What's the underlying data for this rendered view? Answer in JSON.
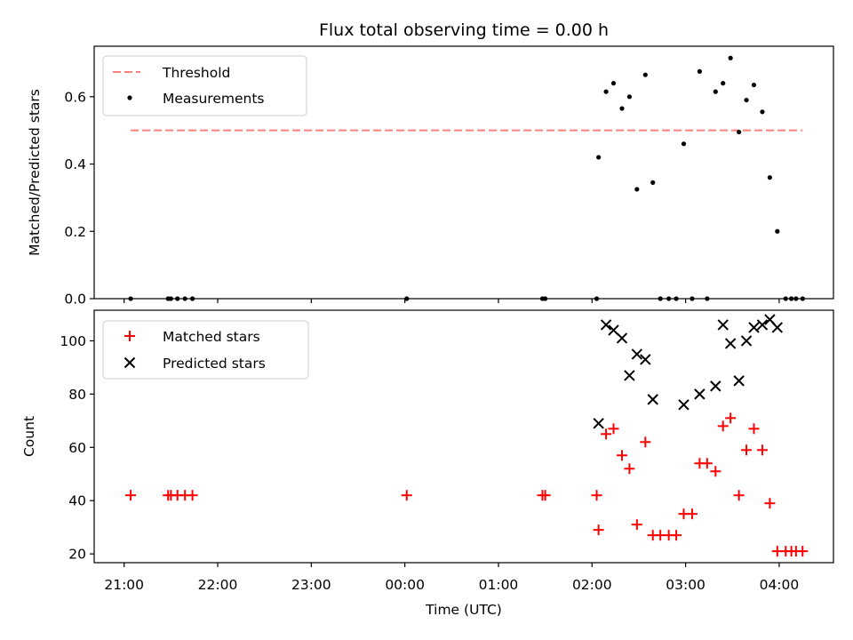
{
  "chart_data": [
    {
      "type": "scatter",
      "title": "Flux total observing time = 0.00 h",
      "xlabel": "",
      "ylabel": "Matched/Predicted stars",
      "ylim": [
        0,
        0.75
      ],
      "yticks": [
        0.0,
        0.2,
        0.4,
        0.6
      ],
      "ytick_labels": [
        "0.0",
        "0.2",
        "0.4",
        "0.6"
      ],
      "xlim": [
        20.68,
        28.58
      ],
      "xticks": [
        21,
        22,
        23,
        24,
        25,
        26,
        27,
        28
      ],
      "legend": {
        "position": "upper-left",
        "entries": [
          "Threshold",
          "Measurements"
        ]
      },
      "threshold": {
        "name": "Threshold",
        "value": 0.5,
        "x_range": [
          21.07,
          28.25
        ],
        "color": "#ff7f7f"
      },
      "series": [
        {
          "name": "Measurements",
          "color": "#000000",
          "points": [
            [
              21.07,
              0.0
            ],
            [
              21.47,
              0.0
            ],
            [
              21.5,
              0.0
            ],
            [
              21.57,
              0.0
            ],
            [
              21.65,
              0.0
            ],
            [
              21.73,
              0.0
            ],
            [
              24.02,
              0.0
            ],
            [
              25.47,
              0.0
            ],
            [
              25.5,
              0.0
            ],
            [
              26.05,
              0.0
            ],
            [
              26.07,
              0.42
            ],
            [
              26.15,
              0.615
            ],
            [
              26.23,
              0.64
            ],
            [
              26.32,
              0.565
            ],
            [
              26.4,
              0.6
            ],
            [
              26.48,
              0.325
            ],
            [
              26.57,
              0.665
            ],
            [
              26.65,
              0.345
            ],
            [
              26.73,
              0.0
            ],
            [
              26.82,
              0.0
            ],
            [
              26.9,
              0.0
            ],
            [
              26.98,
              0.46
            ],
            [
              27.07,
              0.0
            ],
            [
              27.15,
              0.675
            ],
            [
              27.23,
              0.0
            ],
            [
              27.32,
              0.615
            ],
            [
              27.4,
              0.64
            ],
            [
              27.48,
              0.715
            ],
            [
              27.57,
              0.495
            ],
            [
              27.65,
              0.59
            ],
            [
              27.73,
              0.635
            ],
            [
              27.82,
              0.555
            ],
            [
              27.9,
              0.36
            ],
            [
              27.98,
              0.2
            ],
            [
              28.07,
              0.0
            ],
            [
              28.13,
              0.0
            ],
            [
              28.18,
              0.0
            ],
            [
              28.25,
              0.0
            ]
          ]
        }
      ]
    },
    {
      "type": "scatter",
      "xlabel": "Time (UTC)",
      "ylabel": "Count",
      "ylim": [
        16.7,
        111.5
      ],
      "yticks": [
        20,
        40,
        60,
        80,
        100
      ],
      "ytick_labels": [
        "20",
        "40",
        "60",
        "80",
        "100"
      ],
      "xlim": [
        20.68,
        28.58
      ],
      "xticks": [
        21,
        22,
        23,
        24,
        25,
        26,
        27,
        28
      ],
      "xtick_labels": [
        "21:00",
        "22:00",
        "23:00",
        "00:00",
        "01:00",
        "02:00",
        "03:00",
        "04:00"
      ],
      "legend": {
        "position": "upper-left",
        "entries": [
          "Matched stars",
          "Predicted stars"
        ]
      },
      "series": [
        {
          "name": "Matched stars",
          "color": "#ff0000",
          "marker": "plus",
          "points": [
            [
              21.07,
              42
            ],
            [
              21.47,
              42
            ],
            [
              21.5,
              42
            ],
            [
              21.57,
              42
            ],
            [
              21.65,
              42
            ],
            [
              21.73,
              42
            ],
            [
              24.02,
              42
            ],
            [
              25.47,
              42
            ],
            [
              25.5,
              42
            ],
            [
              26.05,
              42
            ],
            [
              26.07,
              29
            ],
            [
              26.15,
              65
            ],
            [
              26.23,
              67
            ],
            [
              26.32,
              57
            ],
            [
              26.4,
              52
            ],
            [
              26.48,
              31
            ],
            [
              26.57,
              62
            ],
            [
              26.65,
              27
            ],
            [
              26.73,
              27
            ],
            [
              26.82,
              27
            ],
            [
              26.9,
              27
            ],
            [
              26.98,
              35
            ],
            [
              27.07,
              35
            ],
            [
              27.15,
              54
            ],
            [
              27.23,
              54
            ],
            [
              27.32,
              51
            ],
            [
              27.4,
              68
            ],
            [
              27.48,
              71
            ],
            [
              27.57,
              42
            ],
            [
              27.65,
              59
            ],
            [
              27.73,
              67
            ],
            [
              27.82,
              59
            ],
            [
              27.9,
              39
            ],
            [
              27.98,
              21
            ],
            [
              28.07,
              21
            ],
            [
              28.13,
              21
            ],
            [
              28.18,
              21
            ],
            [
              28.25,
              21
            ]
          ]
        },
        {
          "name": "Predicted stars",
          "color": "#000000",
          "marker": "x",
          "points": [
            [
              26.07,
              69
            ],
            [
              26.15,
              106
            ],
            [
              26.23,
              104
            ],
            [
              26.32,
              101
            ],
            [
              26.4,
              87
            ],
            [
              26.48,
              95
            ],
            [
              26.57,
              93
            ],
            [
              26.65,
              78
            ],
            [
              26.98,
              76
            ],
            [
              27.15,
              80
            ],
            [
              27.32,
              83
            ],
            [
              27.4,
              106
            ],
            [
              27.48,
              99
            ],
            [
              27.57,
              85
            ],
            [
              27.65,
              100
            ],
            [
              27.73,
              105
            ],
            [
              27.82,
              106
            ],
            [
              27.9,
              108
            ],
            [
              27.98,
              105
            ]
          ]
        }
      ]
    }
  ]
}
